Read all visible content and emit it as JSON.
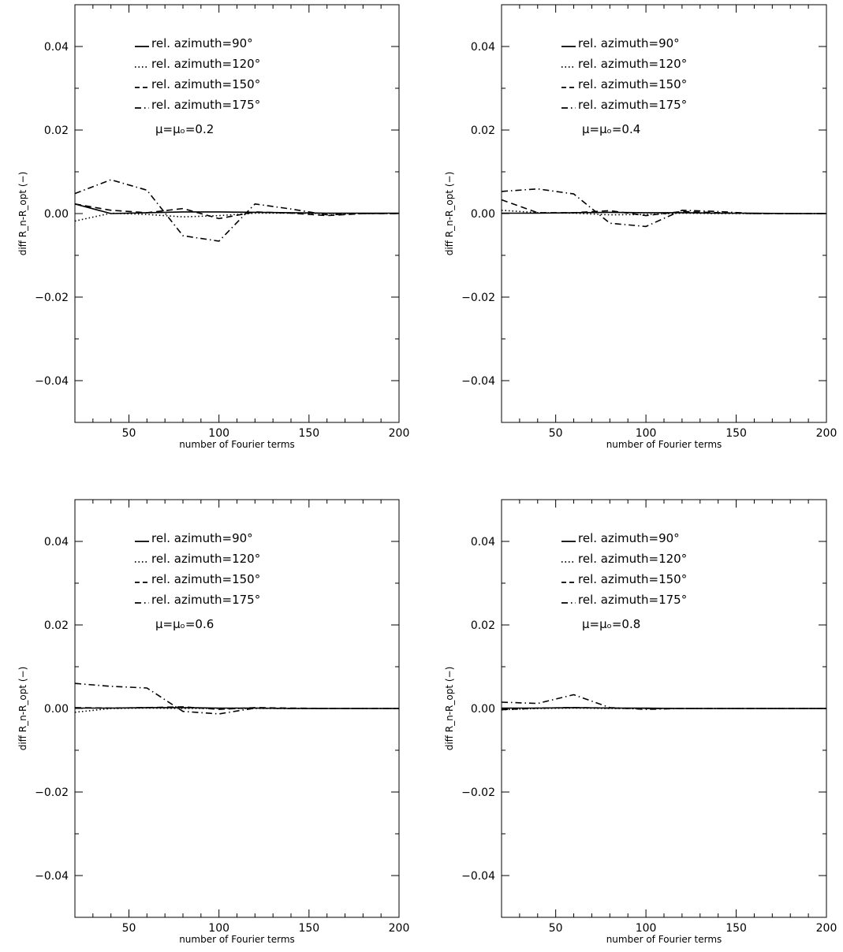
{
  "chart_data": [
    {
      "type": "line",
      "xlabel": "number of Fourier terms",
      "ylabel": "diff R_n-R_opt (−)",
      "xlim": [
        20,
        200
      ],
      "ylim": [
        -0.05,
        0.05
      ],
      "xticks": [
        50,
        100,
        150,
        200
      ],
      "yticks": [
        0.04,
        0.02,
        0.0,
        -0.02,
        -0.04
      ],
      "ytick_labels": [
        "0.04",
        "0.02",
        "0.00",
        "−0.02",
        "−0.04"
      ],
      "annotation": "μ=μₒ=0.2",
      "legend_position": "top-center",
      "x": [
        20,
        40,
        60,
        80,
        100,
        120,
        140,
        160,
        180,
        200
      ],
      "series": [
        {
          "name": "rel. azimuth=90°",
          "style": "solid",
          "values": [
            0.0023,
            0.0,
            0.0002,
            0.0004,
            0.0004,
            0.0003,
            0.0002,
            0.0001,
            0.0001,
            0.0001
          ]
        },
        {
          "name": "rel. azimuth=120°",
          "style": "dotted",
          "values": [
            -0.0018,
            0.0001,
            -0.0002,
            -0.0008,
            -0.0005,
            0.0001,
            0.0001,
            0.0,
            0.0,
            0.0
          ]
        },
        {
          "name": "rel. azimuth=150°",
          "style": "dashed",
          "values": [
            0.0023,
            0.0008,
            0.0002,
            0.0012,
            -0.0012,
            0.0004,
            0.0001,
            -0.0005,
            0.0,
            0.0
          ]
        },
        {
          "name": "rel. azimuth=175°",
          "style": "dashdot",
          "values": [
            0.0048,
            0.0081,
            0.0056,
            -0.0053,
            -0.0066,
            0.0023,
            0.0011,
            -0.0003,
            0.0,
            0.0
          ]
        }
      ]
    },
    {
      "type": "line",
      "xlabel": "number of Fourier terms",
      "ylabel": "diff R_n-R_opt (−)",
      "xlim": [
        20,
        200
      ],
      "ylim": [
        -0.05,
        0.05
      ],
      "xticks": [
        50,
        100,
        150,
        200
      ],
      "yticks": [
        0.04,
        0.02,
        0.0,
        -0.02,
        -0.04
      ],
      "ytick_labels": [
        "0.04",
        "0.02",
        "0.00",
        "−0.02",
        "−0.04"
      ],
      "annotation": "μ=μₒ=0.4",
      "legend_position": "top-center",
      "x": [
        20,
        40,
        60,
        80,
        100,
        120,
        140,
        160,
        180,
        200
      ],
      "series": [
        {
          "name": "rel. azimuth=90°",
          "style": "solid",
          "values": [
            0.0001,
            0.0001,
            0.0002,
            0.0003,
            0.0002,
            0.0002,
            0.0001,
            0.0001,
            0.0,
            0.0
          ]
        },
        {
          "name": "rel. azimuth=120°",
          "style": "dotted",
          "values": [
            0.0008,
            0.0002,
            0.0001,
            -0.0003,
            -0.0002,
            0.0001,
            0.0,
            0.0,
            0.0,
            0.0
          ]
        },
        {
          "name": "rel. azimuth=150°",
          "style": "dashed",
          "values": [
            0.0033,
            0.0002,
            0.0002,
            0.0007,
            -0.0005,
            0.0005,
            0.0002,
            0.0,
            0.0,
            0.0
          ]
        },
        {
          "name": "rel. azimuth=175°",
          "style": "dashdot",
          "values": [
            0.0053,
            0.0059,
            0.0047,
            -0.0023,
            -0.0031,
            0.0008,
            0.0005,
            0.0,
            0.0,
            0.0
          ]
        }
      ]
    },
    {
      "type": "line",
      "xlabel": "number of Fourier terms",
      "ylabel": "diff R_n-R_opt (−)",
      "xlim": [
        20,
        200
      ],
      "ylim": [
        -0.05,
        0.05
      ],
      "xticks": [
        50,
        100,
        150,
        200
      ],
      "yticks": [
        0.04,
        0.02,
        0.0,
        -0.02,
        -0.04
      ],
      "ytick_labels": [
        "0.04",
        "0.02",
        "0.00",
        "−0.02",
        "−0.04"
      ],
      "annotation": "μ=μₒ=0.6",
      "legend_position": "top-center",
      "x": [
        20,
        40,
        60,
        80,
        100,
        120,
        140,
        160,
        180,
        200
      ],
      "series": [
        {
          "name": "rel. azimuth=90°",
          "style": "solid",
          "values": [
            0.0001,
            0.0001,
            0.0002,
            0.0002,
            0.0001,
            0.0001,
            0.0,
            0.0,
            0.0,
            0.0
          ]
        },
        {
          "name": "rel. azimuth=120°",
          "style": "dotted",
          "values": [
            -0.0009,
            0.0,
            0.0001,
            0.0,
            0.0,
            0.0,
            0.0,
            0.0,
            0.0,
            0.0
          ]
        },
        {
          "name": "rel. azimuth=150°",
          "style": "dashed",
          "values": [
            0.0002,
            0.0001,
            0.0002,
            0.0004,
            -0.0002,
            0.0002,
            0.0001,
            0.0,
            0.0,
            0.0
          ]
        },
        {
          "name": "rel. azimuth=175°",
          "style": "dashdot",
          "values": [
            0.006,
            0.0053,
            0.0049,
            -0.0007,
            -0.0013,
            0.0001,
            0.0,
            0.0,
            0.0,
            0.0
          ]
        }
      ]
    },
    {
      "type": "line",
      "xlabel": "number of Fourier terms",
      "ylabel": "diff R_n-R_opt (−)",
      "xlim": [
        20,
        200
      ],
      "ylim": [
        -0.05,
        0.05
      ],
      "xticks": [
        50,
        100,
        150,
        200
      ],
      "yticks": [
        0.04,
        0.02,
        0.0,
        -0.02,
        -0.04
      ],
      "ytick_labels": [
        "0.04",
        "0.02",
        "0.00",
        "−0.02",
        "−0.04"
      ],
      "annotation": "μ=μₒ=0.8",
      "legend_position": "top-center",
      "x": [
        20,
        40,
        60,
        80,
        100,
        120,
        140,
        160,
        180,
        200
      ],
      "series": [
        {
          "name": "rel. azimuth=90°",
          "style": "solid",
          "values": [
            0.0001,
            0.0001,
            0.0002,
            0.0001,
            0.0001,
            0.0,
            0.0,
            0.0,
            0.0,
            0.0
          ]
        },
        {
          "name": "rel. azimuth=120°",
          "style": "dotted",
          "values": [
            -0.0003,
            0.0,
            0.0001,
            0.0,
            0.0,
            0.0,
            0.0,
            0.0,
            0.0,
            0.0
          ]
        },
        {
          "name": "rel. azimuth=150°",
          "style": "dashed",
          "values": [
            -0.0003,
            0.0001,
            0.0002,
            0.0001,
            0.0,
            0.0,
            0.0,
            0.0,
            0.0,
            0.0
          ]
        },
        {
          "name": "rel. azimuth=175°",
          "style": "dashdot",
          "values": [
            0.0015,
            0.0012,
            0.0033,
            0.0002,
            -0.0002,
            0.0,
            0.0,
            0.0,
            0.0,
            0.0
          ]
        }
      ]
    }
  ]
}
